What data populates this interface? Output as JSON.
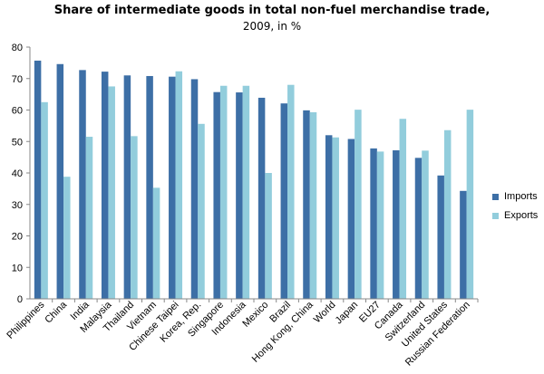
{
  "chart_data": {
    "type": "bar",
    "title": "Share of intermediate goods in total non-fuel merchandise trade,",
    "subtitle": "2009, in %",
    "xlabel": "",
    "ylabel": "",
    "ylim": [
      0,
      80
    ],
    "yticks": [
      0,
      10,
      20,
      30,
      40,
      50,
      60,
      70,
      80
    ],
    "grid": false,
    "legend_position": "right",
    "categories": [
      "Philippines",
      "China",
      "India",
      "Malaysia",
      "Thailand",
      "Vietnam",
      "Chinese Taipei",
      "Korea, Rep.",
      "Singapore",
      "Indonesia",
      "Mexico",
      "Brazil",
      "Hong Kong, China",
      "World",
      "Japan",
      "EU27",
      "Canada",
      "Switzerland",
      "United States",
      "Russian Federation"
    ],
    "series": [
      {
        "name": "Imports",
        "color": "#3d6fa6",
        "values": [
          75.7,
          74.6,
          72.7,
          72.2,
          71.0,
          70.8,
          70.6,
          69.8,
          65.7,
          65.6,
          63.9,
          62.1,
          59.9,
          52.0,
          50.8,
          47.8,
          47.2,
          44.8,
          39.2,
          34.3
        ]
      },
      {
        "name": "Exports",
        "color": "#92cddc",
        "values": [
          62.5,
          38.8,
          51.5,
          67.5,
          51.7,
          35.3,
          72.3,
          55.6,
          67.7,
          67.7,
          40.0,
          68.0,
          59.3,
          51.3,
          60.1,
          46.8,
          57.2,
          47.1,
          53.6,
          60.1
        ]
      }
    ]
  }
}
